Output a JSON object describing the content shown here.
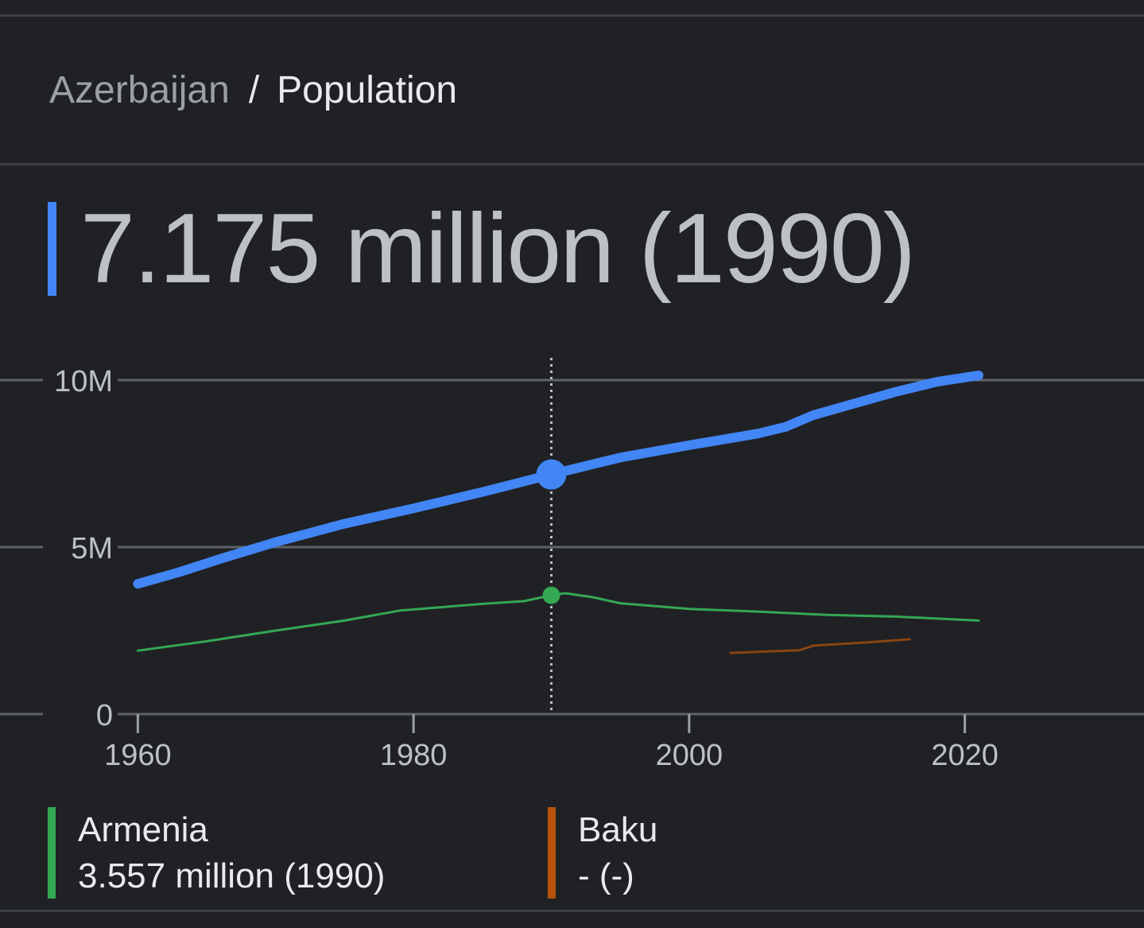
{
  "breadcrumb": {
    "parent": "Azerbaijan",
    "separator": "/",
    "current": "Population"
  },
  "headline": {
    "value": "7.175 million (1990)",
    "color": "#4285f4"
  },
  "legend": [
    {
      "name": "Armenia",
      "value": "3.557 million (1990)",
      "color": "#34a853"
    },
    {
      "name": "Baku",
      "value": "- (-)",
      "color": "#b45309"
    }
  ],
  "chart_data": {
    "type": "line",
    "xlabel": "",
    "ylabel": "",
    "xlim": [
      1950,
      2033
    ],
    "ylim": [
      0,
      10000000
    ],
    "x_ticks": [
      1960,
      1980,
      2000,
      2020
    ],
    "y_ticks": [
      {
        "value": 0,
        "label": "0"
      },
      {
        "value": 5000000,
        "label": "5M"
      },
      {
        "value": 10000000,
        "label": "10M"
      }
    ],
    "grid": "horizontal",
    "highlight_x": 1990,
    "series": [
      {
        "name": "Azerbaijan",
        "color": "#4285f4",
        "points": [
          [
            1960,
            3900000
          ],
          [
            1963,
            4250000
          ],
          [
            1966,
            4650000
          ],
          [
            1970,
            5150000
          ],
          [
            1975,
            5700000
          ],
          [
            1980,
            6160000
          ],
          [
            1985,
            6650000
          ],
          [
            1990,
            7175000
          ],
          [
            1995,
            7680000
          ],
          [
            2000,
            8050000
          ],
          [
            2005,
            8400000
          ],
          [
            2007,
            8600000
          ],
          [
            2009,
            8950000
          ],
          [
            2012,
            9300000
          ],
          [
            2015,
            9650000
          ],
          [
            2018,
            9950000
          ],
          [
            2021,
            10140000
          ]
        ]
      },
      {
        "name": "Armenia",
        "color": "#34a853",
        "points": [
          [
            1960,
            1900000
          ],
          [
            1965,
            2180000
          ],
          [
            1970,
            2500000
          ],
          [
            1975,
            2800000
          ],
          [
            1979,
            3100000
          ],
          [
            1985,
            3300000
          ],
          [
            1988,
            3380000
          ],
          [
            1990,
            3557000
          ],
          [
            1991,
            3620000
          ],
          [
            1993,
            3500000
          ],
          [
            1995,
            3320000
          ],
          [
            2000,
            3150000
          ],
          [
            2005,
            3070000
          ],
          [
            2010,
            2970000
          ],
          [
            2015,
            2920000
          ],
          [
            2021,
            2800000
          ]
        ]
      },
      {
        "name": "Baku",
        "color": "#8b4513",
        "points": [
          [
            2003,
            1830000
          ],
          [
            2006,
            1880000
          ],
          [
            2008,
            1910000
          ],
          [
            2009,
            2050000
          ],
          [
            2013,
            2150000
          ],
          [
            2016,
            2240000
          ]
        ]
      }
    ]
  }
}
